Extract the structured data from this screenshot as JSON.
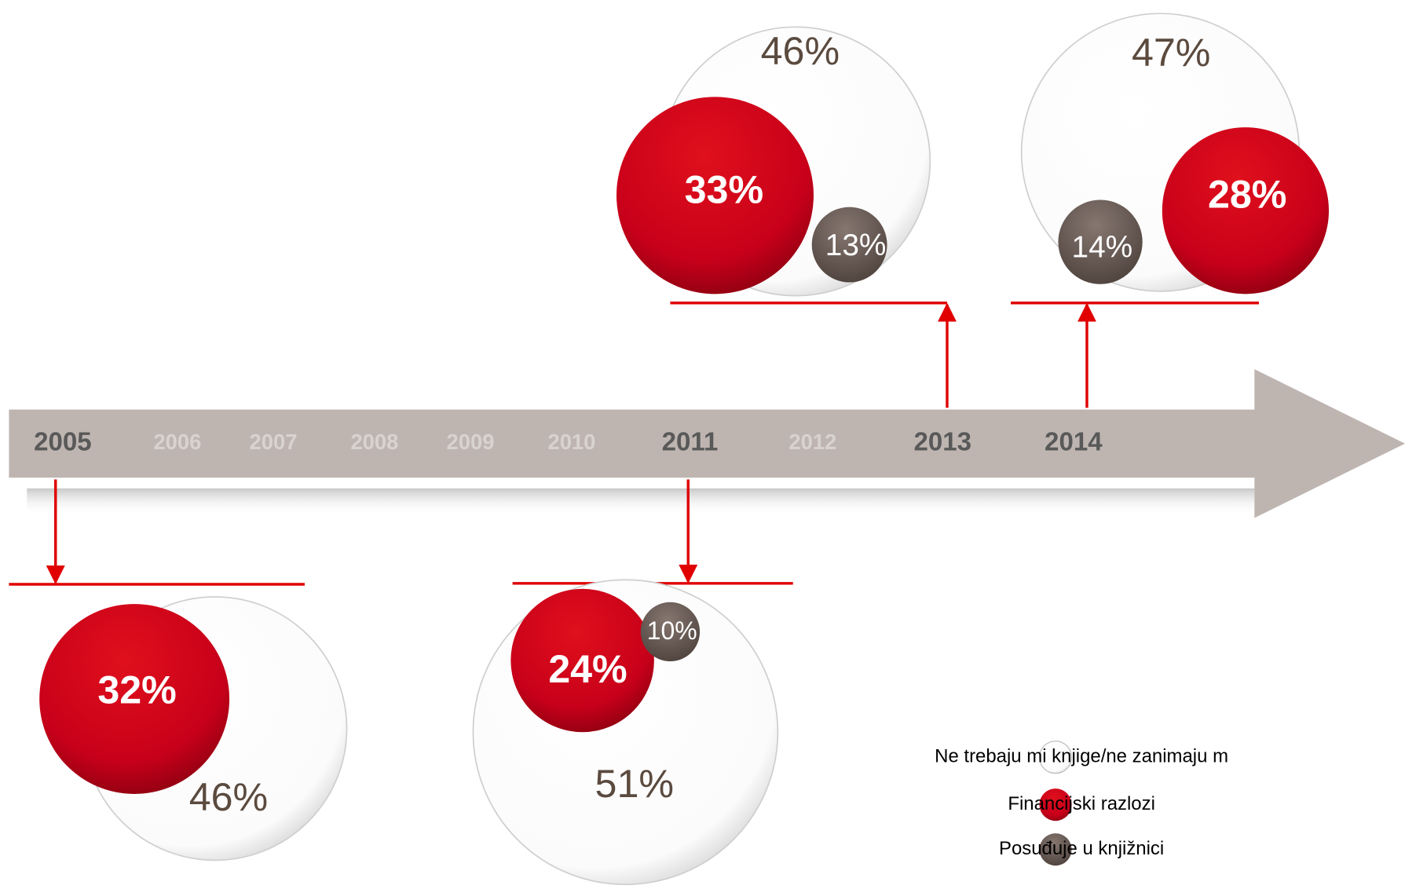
{
  "timeline": {
    "years": [
      "2005",
      "2006",
      "2007",
      "2008",
      "2009",
      "2010",
      "2011",
      "2012",
      "2013",
      "2014"
    ]
  },
  "groups": [
    {
      "white": "46%",
      "red": "32%"
    },
    {
      "white": "51%",
      "red": "24%",
      "gray": "10%"
    },
    {
      "white": "46%",
      "red": "33%",
      "gray": "13%"
    },
    {
      "white": "47%",
      "red": "28%",
      "gray": "14%"
    }
  ],
  "legend": [
    "Ne trebaju mi knjige/ne zanimaju m",
    "Financijski razlozi",
    "Posuđuje u knjižnici"
  ]
}
